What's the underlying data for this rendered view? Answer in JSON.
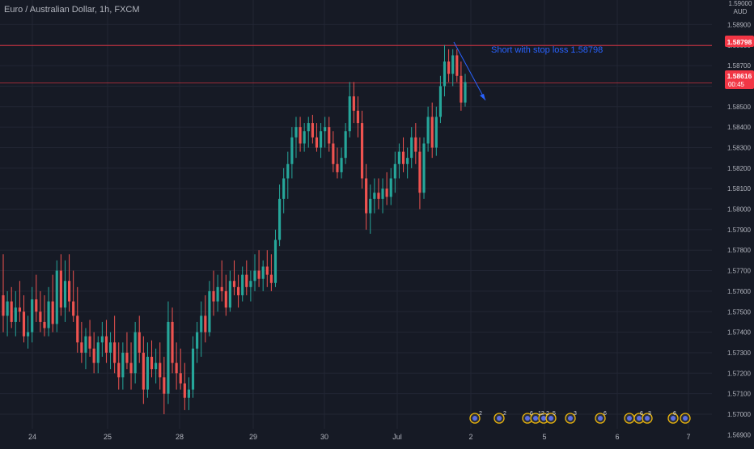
{
  "header": {
    "symbol_title": "Euro / Australian Dollar, 1h, FXCM",
    "price_axis_top_label": "1.59000",
    "currency_label": "AUD"
  },
  "annotations": {
    "note": "Short with stop loss 1.58798",
    "stop_loss_badge": "1.58798",
    "last_price_badge": "1.58616",
    "countdown": "00:45"
  },
  "colors": {
    "background": "#161a25",
    "grid": "#222634",
    "up": "#26a69a",
    "down": "#ef5350",
    "stop_line": "#f23645",
    "arrow": "#2962ff",
    "axis_text": "#b2b5be"
  },
  "icons": [
    "earnings-icon",
    "earnings-icon",
    "earnings-icon",
    "earnings-icon",
    "earnings-icon",
    "earnings-icon",
    "earnings-icon",
    "earnings-icon",
    "earnings-icon",
    "earnings-icon",
    "earnings-icon",
    "earnings-icon",
    "earnings-icon"
  ],
  "event_badges": [
    "2",
    "2",
    "6",
    "12",
    "2",
    "5",
    "3",
    "6",
    "6",
    "3",
    "6"
  ],
  "chart_data": {
    "type": "candlestick",
    "title": "Euro / Australian Dollar, 1h, FXCM",
    "ylim": [
      1.5685,
      1.5902
    ],
    "y_ticks": [
      "1.56900",
      "1.57000",
      "1.57100",
      "1.57200",
      "1.57300",
      "1.57400",
      "1.57500",
      "1.57600",
      "1.57700",
      "1.57800",
      "1.57900",
      "1.58000",
      "1.58100",
      "1.58200",
      "1.58300",
      "1.58400",
      "1.58500",
      "1.58600",
      "1.58700",
      "1.58800",
      "1.58900"
    ],
    "x_tick_labels": [
      "24",
      "25",
      "28",
      "29",
      "30",
      "Jul",
      "2",
      "5",
      "6",
      "7"
    ],
    "horizontal_lines": [
      {
        "label": "1.58798",
        "value": 1.58798
      },
      {
        "label": "1.58616",
        "value": 1.58616
      }
    ],
    "candles": [
      {
        "o": 1.5758,
        "h": 1.5778,
        "l": 1.574,
        "c": 1.5748
      },
      {
        "o": 1.5748,
        "h": 1.576,
        "l": 1.5738,
        "c": 1.5755
      },
      {
        "o": 1.5755,
        "h": 1.5762,
        "l": 1.5742,
        "c": 1.5745
      },
      {
        "o": 1.5745,
        "h": 1.576,
        "l": 1.5738,
        "c": 1.5752
      },
      {
        "o": 1.5752,
        "h": 1.5765,
        "l": 1.5745,
        "c": 1.575
      },
      {
        "o": 1.575,
        "h": 1.5758,
        "l": 1.5735,
        "c": 1.5738
      },
      {
        "o": 1.5738,
        "h": 1.5748,
        "l": 1.5732,
        "c": 1.574
      },
      {
        "o": 1.574,
        "h": 1.5762,
        "l": 1.5735,
        "c": 1.5756
      },
      {
        "o": 1.5756,
        "h": 1.5768,
        "l": 1.5745,
        "c": 1.575
      },
      {
        "o": 1.575,
        "h": 1.576,
        "l": 1.574,
        "c": 1.5745
      },
      {
        "o": 1.5745,
        "h": 1.5758,
        "l": 1.5738,
        "c": 1.5742
      },
      {
        "o": 1.5742,
        "h": 1.5762,
        "l": 1.5738,
        "c": 1.5755
      },
      {
        "o": 1.5755,
        "h": 1.5768,
        "l": 1.574,
        "c": 1.5744
      },
      {
        "o": 1.5744,
        "h": 1.5775,
        "l": 1.574,
        "c": 1.577
      },
      {
        "o": 1.577,
        "h": 1.5778,
        "l": 1.5748,
        "c": 1.5752
      },
      {
        "o": 1.5752,
        "h": 1.5775,
        "l": 1.5745,
        "c": 1.5765
      },
      {
        "o": 1.5765,
        "h": 1.5778,
        "l": 1.575,
        "c": 1.5755
      },
      {
        "o": 1.5755,
        "h": 1.577,
        "l": 1.5745,
        "c": 1.5748
      },
      {
        "o": 1.5748,
        "h": 1.5762,
        "l": 1.573,
        "c": 1.5735
      },
      {
        "o": 1.5735,
        "h": 1.5745,
        "l": 1.5725,
        "c": 1.573
      },
      {
        "o": 1.573,
        "h": 1.5742,
        "l": 1.5722,
        "c": 1.5738
      },
      {
        "o": 1.5738,
        "h": 1.5746,
        "l": 1.5728,
        "c": 1.5732
      },
      {
        "o": 1.5732,
        "h": 1.574,
        "l": 1.572,
        "c": 1.5725
      },
      {
        "o": 1.5725,
        "h": 1.5738,
        "l": 1.572,
        "c": 1.5735
      },
      {
        "o": 1.5735,
        "h": 1.5745,
        "l": 1.5728,
        "c": 1.5738
      },
      {
        "o": 1.5738,
        "h": 1.5746,
        "l": 1.5725,
        "c": 1.573
      },
      {
        "o": 1.573,
        "h": 1.574,
        "l": 1.5722,
        "c": 1.5735
      },
      {
        "o": 1.5735,
        "h": 1.5748,
        "l": 1.572,
        "c": 1.5725
      },
      {
        "o": 1.5725,
        "h": 1.5735,
        "l": 1.5712,
        "c": 1.5718
      },
      {
        "o": 1.5718,
        "h": 1.5735,
        "l": 1.5712,
        "c": 1.573
      },
      {
        "o": 1.573,
        "h": 1.574,
        "l": 1.5722,
        "c": 1.5725
      },
      {
        "o": 1.5725,
        "h": 1.5735,
        "l": 1.5712,
        "c": 1.572
      },
      {
        "o": 1.572,
        "h": 1.5745,
        "l": 1.5715,
        "c": 1.574
      },
      {
        "o": 1.574,
        "h": 1.5748,
        "l": 1.5725,
        "c": 1.573
      },
      {
        "o": 1.573,
        "h": 1.5738,
        "l": 1.5705,
        "c": 1.5712
      },
      {
        "o": 1.5712,
        "h": 1.5735,
        "l": 1.5708,
        "c": 1.5728
      },
      {
        "o": 1.5728,
        "h": 1.5736,
        "l": 1.5718,
        "c": 1.5722
      },
      {
        "o": 1.5722,
        "h": 1.5732,
        "l": 1.5715,
        "c": 1.5725
      },
      {
        "o": 1.5725,
        "h": 1.5735,
        "l": 1.5712,
        "c": 1.5718
      },
      {
        "o": 1.5718,
        "h": 1.5728,
        "l": 1.57,
        "c": 1.571
      },
      {
        "o": 1.571,
        "h": 1.5755,
        "l": 1.5705,
        "c": 1.5745
      },
      {
        "o": 1.5745,
        "h": 1.5752,
        "l": 1.572,
        "c": 1.5725
      },
      {
        "o": 1.5725,
        "h": 1.5735,
        "l": 1.5712,
        "c": 1.572
      },
      {
        "o": 1.572,
        "h": 1.5732,
        "l": 1.5712,
        "c": 1.5715
      },
      {
        "o": 1.5715,
        "h": 1.5725,
        "l": 1.5702,
        "c": 1.5708
      },
      {
        "o": 1.5708,
        "h": 1.5718,
        "l": 1.5702,
        "c": 1.5712
      },
      {
        "o": 1.5712,
        "h": 1.5738,
        "l": 1.5708,
        "c": 1.5732
      },
      {
        "o": 1.5732,
        "h": 1.5745,
        "l": 1.5725,
        "c": 1.574
      },
      {
        "o": 1.574,
        "h": 1.5755,
        "l": 1.5728,
        "c": 1.5748
      },
      {
        "o": 1.5748,
        "h": 1.5758,
        "l": 1.5735,
        "c": 1.574
      },
      {
        "o": 1.574,
        "h": 1.5765,
        "l": 1.5738,
        "c": 1.576
      },
      {
        "o": 1.576,
        "h": 1.577,
        "l": 1.5748,
        "c": 1.5755
      },
      {
        "o": 1.5755,
        "h": 1.5768,
        "l": 1.575,
        "c": 1.5762
      },
      {
        "o": 1.5762,
        "h": 1.5775,
        "l": 1.5755,
        "c": 1.576
      },
      {
        "o": 1.576,
        "h": 1.5768,
        "l": 1.5748,
        "c": 1.5752
      },
      {
        "o": 1.5752,
        "h": 1.577,
        "l": 1.575,
        "c": 1.5765
      },
      {
        "o": 1.5765,
        "h": 1.5775,
        "l": 1.5758,
        "c": 1.5762
      },
      {
        "o": 1.5762,
        "h": 1.5768,
        "l": 1.5752,
        "c": 1.5758
      },
      {
        "o": 1.5758,
        "h": 1.5772,
        "l": 1.5755,
        "c": 1.5768
      },
      {
        "o": 1.5768,
        "h": 1.5775,
        "l": 1.5758,
        "c": 1.5762
      },
      {
        "o": 1.5762,
        "h": 1.577,
        "l": 1.5755,
        "c": 1.5765
      },
      {
        "o": 1.5765,
        "h": 1.5778,
        "l": 1.576,
        "c": 1.577
      },
      {
        "o": 1.577,
        "h": 1.578,
        "l": 1.5762,
        "c": 1.5766
      },
      {
        "o": 1.5766,
        "h": 1.5775,
        "l": 1.576,
        "c": 1.5772
      },
      {
        "o": 1.5772,
        "h": 1.578,
        "l": 1.5762,
        "c": 1.5768
      },
      {
        "o": 1.5768,
        "h": 1.5778,
        "l": 1.576,
        "c": 1.5764
      },
      {
        "o": 1.5764,
        "h": 1.579,
        "l": 1.5762,
        "c": 1.5785
      },
      {
        "o": 1.5785,
        "h": 1.5812,
        "l": 1.5782,
        "c": 1.5805
      },
      {
        "o": 1.5805,
        "h": 1.582,
        "l": 1.5798,
        "c": 1.5815
      },
      {
        "o": 1.5815,
        "h": 1.5828,
        "l": 1.5805,
        "c": 1.5822
      },
      {
        "o": 1.5822,
        "h": 1.584,
        "l": 1.5815,
        "c": 1.5835
      },
      {
        "o": 1.5835,
        "h": 1.5845,
        "l": 1.5825,
        "c": 1.584
      },
      {
        "o": 1.584,
        "h": 1.5845,
        "l": 1.5828,
        "c": 1.5832
      },
      {
        "o": 1.5832,
        "h": 1.5842,
        "l": 1.5828,
        "c": 1.5838
      },
      {
        "o": 1.5838,
        "h": 1.5845,
        "l": 1.583,
        "c": 1.5842
      },
      {
        "o": 1.5842,
        "h": 1.5846,
        "l": 1.5832,
        "c": 1.5835
      },
      {
        "o": 1.5835,
        "h": 1.5842,
        "l": 1.5828,
        "c": 1.583
      },
      {
        "o": 1.583,
        "h": 1.5842,
        "l": 1.5825,
        "c": 1.5838
      },
      {
        "o": 1.5838,
        "h": 1.5845,
        "l": 1.583,
        "c": 1.584
      },
      {
        "o": 1.584,
        "h": 1.5845,
        "l": 1.5828,
        "c": 1.5832
      },
      {
        "o": 1.5832,
        "h": 1.5838,
        "l": 1.5818,
        "c": 1.5822
      },
      {
        "o": 1.5822,
        "h": 1.583,
        "l": 1.5815,
        "c": 1.5818
      },
      {
        "o": 1.5818,
        "h": 1.583,
        "l": 1.5815,
        "c": 1.5825
      },
      {
        "o": 1.5825,
        "h": 1.5842,
        "l": 1.5822,
        "c": 1.5838
      },
      {
        "o": 1.5838,
        "h": 1.5862,
        "l": 1.5835,
        "c": 1.5855
      },
      {
        "o": 1.5855,
        "h": 1.5862,
        "l": 1.5842,
        "c": 1.5848
      },
      {
        "o": 1.5848,
        "h": 1.5855,
        "l": 1.5835,
        "c": 1.5842
      },
      {
        "o": 1.5842,
        "h": 1.5848,
        "l": 1.581,
        "c": 1.5815
      },
      {
        "o": 1.5815,
        "h": 1.5822,
        "l": 1.579,
        "c": 1.5798
      },
      {
        "o": 1.5798,
        "h": 1.5812,
        "l": 1.5788,
        "c": 1.5805
      },
      {
        "o": 1.5805,
        "h": 1.5815,
        "l": 1.5798,
        "c": 1.5808
      },
      {
        "o": 1.5808,
        "h": 1.5815,
        "l": 1.58,
        "c": 1.5805
      },
      {
        "o": 1.5805,
        "h": 1.5815,
        "l": 1.5798,
        "c": 1.581
      },
      {
        "o": 1.581,
        "h": 1.5818,
        "l": 1.5802,
        "c": 1.5806
      },
      {
        "o": 1.5806,
        "h": 1.582,
        "l": 1.5802,
        "c": 1.5815
      },
      {
        "o": 1.5815,
        "h": 1.5828,
        "l": 1.5808,
        "c": 1.5822
      },
      {
        "o": 1.5822,
        "h": 1.5832,
        "l": 1.5815,
        "c": 1.5828
      },
      {
        "o": 1.5828,
        "h": 1.5835,
        "l": 1.5818,
        "c": 1.5822
      },
      {
        "o": 1.5822,
        "h": 1.583,
        "l": 1.5815,
        "c": 1.5825
      },
      {
        "o": 1.5825,
        "h": 1.584,
        "l": 1.582,
        "c": 1.5835
      },
      {
        "o": 1.5835,
        "h": 1.5842,
        "l": 1.5822,
        "c": 1.5828
      },
      {
        "o": 1.5828,
        "h": 1.5835,
        "l": 1.58,
        "c": 1.5808
      },
      {
        "o": 1.5808,
        "h": 1.5835,
        "l": 1.5805,
        "c": 1.5832
      },
      {
        "o": 1.5832,
        "h": 1.585,
        "l": 1.5828,
        "c": 1.5845
      },
      {
        "o": 1.5845,
        "h": 1.5852,
        "l": 1.5825,
        "c": 1.583
      },
      {
        "o": 1.583,
        "h": 1.585,
        "l": 1.5826,
        "c": 1.5845
      },
      {
        "o": 1.5845,
        "h": 1.5865,
        "l": 1.5842,
        "c": 1.586
      },
      {
        "o": 1.586,
        "h": 1.588,
        "l": 1.5855,
        "c": 1.5872
      },
      {
        "o": 1.5872,
        "h": 1.5878,
        "l": 1.5862,
        "c": 1.5866
      },
      {
        "o": 1.5866,
        "h": 1.5878,
        "l": 1.586,
        "c": 1.5875
      },
      {
        "o": 1.5875,
        "h": 1.5878,
        "l": 1.5862,
        "c": 1.5865
      },
      {
        "o": 1.5865,
        "h": 1.5872,
        "l": 1.5848,
        "c": 1.5852
      },
      {
        "o": 1.5852,
        "h": 1.5866,
        "l": 1.585,
        "c": 1.5862
      }
    ]
  }
}
